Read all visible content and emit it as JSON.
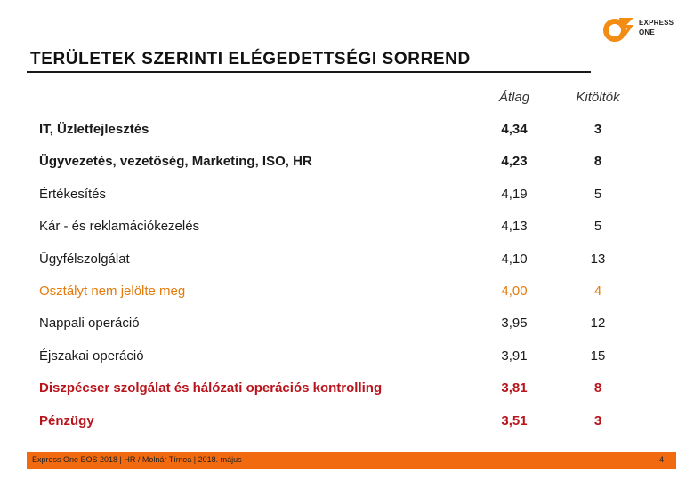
{
  "logo": {
    "line1": "EXPRESS",
    "line2": "ONE",
    "color": "#f28c12"
  },
  "title": "TERÜLETEK SZERINTI ELÉGEDETTSÉGI SORREND",
  "columns": {
    "avg": "Átlag",
    "count": "Kitöltők"
  },
  "rows": [
    {
      "name": "IT, Üzletfejlesztés",
      "avg": "4,34",
      "count": "3",
      "style": "bold"
    },
    {
      "name": "Ügyvezetés, vezetőség, Marketing, ISO, HR",
      "avg": "4,23",
      "count": "8",
      "style": "bold"
    },
    {
      "name": "Értékesítés",
      "avg": "4,19",
      "count": "5",
      "style": "normal"
    },
    {
      "name": "Kár - és reklamációkezelés",
      "avg": "4,13",
      "count": "5",
      "style": "normal"
    },
    {
      "name": "Ügyfélszolgálat",
      "avg": "4,10",
      "count": "13",
      "style": "normal"
    },
    {
      "name": "Osztályt nem jelölte meg",
      "avg": "4,00",
      "count": "4",
      "style": "orange"
    },
    {
      "name": "Nappali operáció",
      "avg": "3,95",
      "count": "12",
      "style": "normal"
    },
    {
      "name": "Éjszakai operáció",
      "avg": "3,91",
      "count": "15",
      "style": "normal"
    },
    {
      "name": "Diszpécser szolgálat és hálózati operációs kontrolling",
      "avg": "3,81",
      "count": "8",
      "style": "red"
    },
    {
      "name": "Pénzügy",
      "avg": "3,51",
      "count": "3",
      "style": "red"
    }
  ],
  "footer": {
    "text": "Express One EOS 2018  |  HR / Molnár Tímea  | 2018. május",
    "page": "4",
    "color": "#f26a10"
  }
}
